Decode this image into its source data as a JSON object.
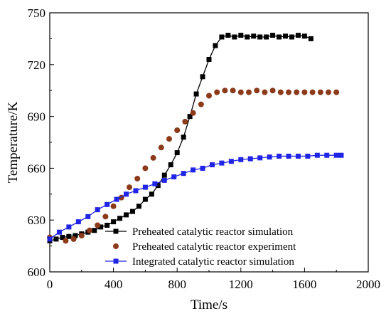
{
  "chart_data": {
    "type": "line",
    "xlabel": "Time/s",
    "ylabel": "Temperature/K",
    "xlim": [
      0,
      2000
    ],
    "ylim": [
      600,
      750
    ],
    "xticks": [
      0,
      400,
      800,
      1200,
      1600,
      2000
    ],
    "yticks": [
      600,
      630,
      660,
      690,
      720,
      750
    ],
    "grid": false,
    "legend_position": "bottom-right",
    "series": [
      {
        "name": "Preheated catalytic  reactor simulation",
        "color": "#000000",
        "marker": "square",
        "line": true,
        "x": [
          0,
          40,
          80,
          120,
          160,
          200,
          240,
          280,
          320,
          360,
          400,
          440,
          480,
          520,
          560,
          600,
          640,
          680,
          720,
          760,
          800,
          840,
          880,
          920,
          960,
          1000,
          1040,
          1080,
          1120,
          1160,
          1200,
          1240,
          1280,
          1320,
          1360,
          1400,
          1440,
          1480,
          1520,
          1560,
          1600,
          1640
        ],
        "y": [
          618,
          619,
          620,
          620.5,
          621,
          622,
          623,
          624,
          626,
          627,
          629,
          631,
          633,
          635,
          638,
          642,
          645,
          650,
          656,
          662,
          669,
          678,
          690,
          703,
          713,
          723,
          731,
          736,
          737,
          736,
          737,
          736,
          736.5,
          736,
          736,
          737,
          736,
          736.5,
          736,
          737,
          736.5,
          735
        ]
      },
      {
        "name": "Preheated catalytic  reactor experiment",
        "color": "#8b3a1a",
        "marker": "circle",
        "line": false,
        "x": [
          0,
          100,
          150,
          200,
          250,
          300,
          350,
          400,
          450,
          500,
          550,
          600,
          650,
          700,
          750,
          800,
          850,
          900,
          950,
          1000,
          1050,
          1100,
          1150,
          1200,
          1250,
          1300,
          1350,
          1400,
          1450,
          1500,
          1550,
          1600,
          1650,
          1700,
          1750,
          1800
        ],
        "y": [
          620,
          618,
          619,
          621,
          624,
          627,
          632,
          638,
          643,
          649,
          654,
          660,
          666,
          672,
          677,
          682,
          687,
          692,
          697,
          702,
          704,
          705,
          705,
          704,
          704,
          705,
          704,
          705,
          704,
          704,
          704,
          704,
          704,
          704,
          704,
          704
        ]
      },
      {
        "name": "Integrated catalytic reactor simulation",
        "color": "#1f24e6",
        "marker": "square",
        "line": true,
        "x": [
          0,
          60,
          120,
          180,
          240,
          300,
          360,
          420,
          480,
          540,
          600,
          660,
          720,
          780,
          840,
          900,
          960,
          1020,
          1080,
          1140,
          1200,
          1260,
          1320,
          1380,
          1440,
          1500,
          1560,
          1620,
          1680,
          1740,
          1800,
          1830
        ],
        "y": [
          619,
          623,
          626,
          629,
          632,
          636,
          639,
          642,
          645,
          647,
          649,
          651,
          653,
          655,
          657,
          659,
          660,
          662,
          663,
          664,
          665,
          665.5,
          666,
          666.5,
          667,
          667,
          667,
          667,
          667.5,
          667.5,
          667.5,
          667.5
        ]
      }
    ]
  }
}
